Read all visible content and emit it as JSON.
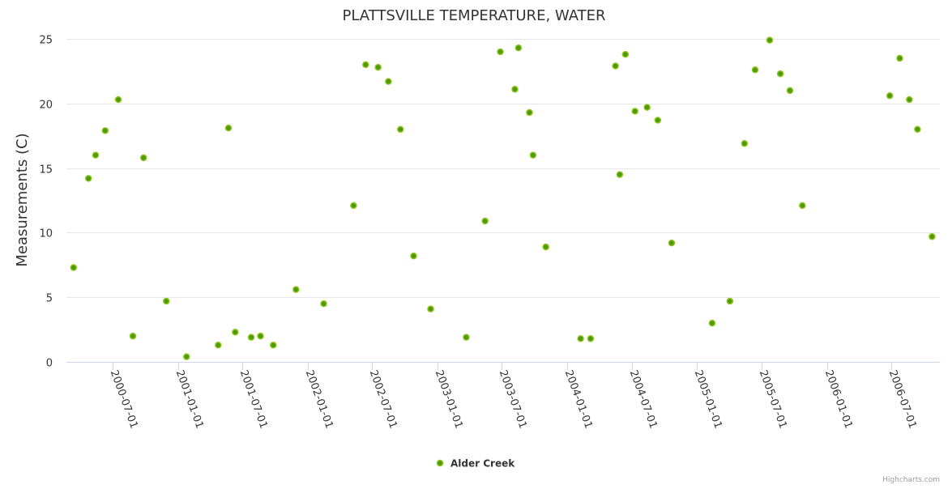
{
  "chart_data": {
    "type": "scatter",
    "title": "PLATTSVILLE TEMPERATURE, WATER",
    "xlabel": "",
    "ylabel": "Measurements (C)",
    "ylim": [
      0,
      25
    ],
    "yticks": [
      0,
      5,
      10,
      15,
      20,
      25
    ],
    "xlim": [
      "2000-02-22",
      "2006-11-15"
    ],
    "xticks": [
      "2000-07-01",
      "2001-01-01",
      "2001-07-01",
      "2002-01-01",
      "2002-07-01",
      "2003-01-01",
      "2003-07-01",
      "2004-01-01",
      "2004-07-01",
      "2005-01-01",
      "2005-07-01",
      "2006-01-01",
      "2006-07-01"
    ],
    "grid": true,
    "legend_position": "bottom-center",
    "credits": "Highcharts.com",
    "series": [
      {
        "name": "Alder Creek",
        "color": "#4f9a00",
        "stroke": "#8cc520",
        "points": [
          [
            "2000-03-13",
            7.3
          ],
          [
            "2000-04-24",
            14.2
          ],
          [
            "2000-05-14",
            16.0
          ],
          [
            "2000-06-10",
            17.9
          ],
          [
            "2000-07-17",
            20.3
          ],
          [
            "2000-08-27",
            2.0
          ],
          [
            "2000-09-26",
            15.8
          ],
          [
            "2000-11-29",
            4.7
          ],
          [
            "2001-01-25",
            0.4
          ],
          [
            "2001-04-24",
            1.3
          ],
          [
            "2001-05-23",
            18.1
          ],
          [
            "2001-06-11",
            2.3
          ],
          [
            "2001-07-26",
            1.9
          ],
          [
            "2001-08-21",
            2.0
          ],
          [
            "2001-09-26",
            1.3
          ],
          [
            "2001-11-29",
            5.6
          ],
          [
            "2002-02-15",
            4.5
          ],
          [
            "2002-05-10",
            12.1
          ],
          [
            "2002-06-13",
            23.0
          ],
          [
            "2002-07-18",
            22.8
          ],
          [
            "2002-08-16",
            21.7
          ],
          [
            "2002-09-19",
            18.0
          ],
          [
            "2002-10-26",
            8.2
          ],
          [
            "2002-12-13",
            4.1
          ],
          [
            "2003-03-23",
            1.9
          ],
          [
            "2003-05-15",
            10.9
          ],
          [
            "2003-06-27",
            24.0
          ],
          [
            "2003-08-07",
            21.1
          ],
          [
            "2003-08-17",
            24.3
          ],
          [
            "2003-09-17",
            19.3
          ],
          [
            "2003-09-27",
            16.0
          ],
          [
            "2003-11-02",
            8.9
          ],
          [
            "2004-02-08",
            1.8
          ],
          [
            "2004-03-07",
            1.8
          ],
          [
            "2004-05-16",
            22.9
          ],
          [
            "2004-05-28",
            14.5
          ],
          [
            "2004-06-13",
            23.8
          ],
          [
            "2004-07-10",
            19.4
          ],
          [
            "2004-08-13",
            19.7
          ],
          [
            "2004-09-12",
            18.7
          ],
          [
            "2004-10-21",
            9.2
          ],
          [
            "2005-02-12",
            3.0
          ],
          [
            "2005-04-03",
            4.7
          ],
          [
            "2005-05-14",
            16.9
          ],
          [
            "2005-06-13",
            22.6
          ],
          [
            "2005-07-24",
            24.9
          ],
          [
            "2005-08-23",
            22.3
          ],
          [
            "2005-09-19",
            21.0
          ],
          [
            "2005-10-24",
            12.1
          ],
          [
            "2006-06-27",
            20.6
          ],
          [
            "2006-07-25",
            23.5
          ],
          [
            "2006-08-21",
            20.3
          ],
          [
            "2006-09-13",
            18.0
          ],
          [
            "2006-10-24",
            9.7
          ]
        ]
      }
    ]
  }
}
